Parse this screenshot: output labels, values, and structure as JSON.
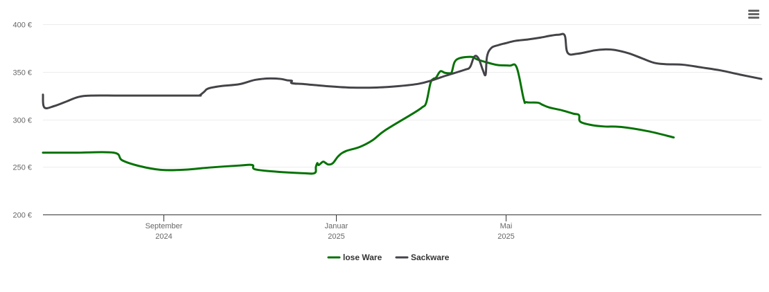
{
  "chart_data": {
    "type": "line",
    "x_unit": "month",
    "ylim": [
      200,
      400
    ],
    "yticks": [
      {
        "value": 200,
        "label": "200 €"
      },
      {
        "value": 250,
        "label": "250 €"
      },
      {
        "value": 300,
        "label": "300 €"
      },
      {
        "value": 350,
        "label": "350 €"
      },
      {
        "value": 400,
        "label": "400 €"
      }
    ],
    "xticks": [
      {
        "x": "2024-09",
        "label": "September",
        "sublabel": "2024"
      },
      {
        "x": "2025-01",
        "label": "Januar",
        "sublabel": "2025"
      },
      {
        "x": "2025-05",
        "label": "Mai",
        "sublabel": "2025"
      }
    ],
    "grid": "horizontal",
    "legend_position": "bottom-center",
    "series": [
      {
        "name": "lose Ware",
        "color": "#047204",
        "points": [
          [
            "2024-06-08",
            265
          ],
          [
            "2024-07-01",
            265
          ],
          [
            "2024-07-28",
            265
          ],
          [
            "2024-08-03",
            257
          ],
          [
            "2024-08-15",
            251
          ],
          [
            "2024-08-30",
            247
          ],
          [
            "2024-09-15",
            247
          ],
          [
            "2024-10-05",
            249.5
          ],
          [
            "2024-10-25",
            251.5
          ],
          [
            "2024-11-03",
            252
          ],
          [
            "2024-11-05",
            247.5
          ],
          [
            "2024-11-20",
            245
          ],
          [
            "2024-12-08",
            243.5
          ],
          [
            "2024-12-17",
            243.5
          ],
          [
            "2024-12-18",
            250
          ],
          [
            "2024-12-19",
            254
          ],
          [
            "2024-12-20",
            252
          ],
          [
            "2024-12-23",
            255.5
          ],
          [
            "2024-12-25",
            254
          ],
          [
            "2024-12-27",
            252.5
          ],
          [
            "2024-12-30",
            254
          ],
          [
            "2025-01-03",
            261.5
          ],
          [
            "2025-01-08",
            266.5
          ],
          [
            "2025-01-18",
            271
          ],
          [
            "2025-01-27",
            278
          ],
          [
            "2025-02-05",
            288.5
          ],
          [
            "2025-02-25",
            306.5
          ],
          [
            "2025-03-03",
            312.5
          ],
          [
            "2025-03-06",
            317.5
          ],
          [
            "2025-03-09",
            338
          ],
          [
            "2025-03-11",
            342.5
          ],
          [
            "2025-03-13",
            344
          ],
          [
            "2025-03-16",
            350.5
          ],
          [
            "2025-03-19",
            349
          ],
          [
            "2025-03-22",
            348.5
          ],
          [
            "2025-03-24",
            349.5
          ],
          [
            "2025-03-26",
            360
          ],
          [
            "2025-03-29",
            364
          ],
          [
            "2025-04-03",
            365.5
          ],
          [
            "2025-04-08",
            365.5
          ],
          [
            "2025-04-11",
            363
          ],
          [
            "2025-04-20",
            359
          ],
          [
            "2025-04-26",
            357
          ],
          [
            "2025-05-04",
            356.5
          ],
          [
            "2025-05-09",
            354.5
          ],
          [
            "2025-05-14",
            321
          ],
          [
            "2025-05-16",
            318
          ],
          [
            "2025-05-24",
            317.5
          ],
          [
            "2025-05-27",
            315.5
          ],
          [
            "2025-06-01",
            312.5
          ],
          [
            "2025-06-10",
            309.5
          ],
          [
            "2025-06-18",
            306
          ],
          [
            "2025-06-22",
            304.5
          ],
          [
            "2025-06-23",
            297.5
          ],
          [
            "2025-07-01",
            294
          ],
          [
            "2025-07-10",
            292.5
          ],
          [
            "2025-07-22",
            292
          ],
          [
            "2025-08-10",
            287.5
          ],
          [
            "2025-08-28",
            281
          ]
        ]
      },
      {
        "name": "Sackware",
        "color": "#434348",
        "points": [
          [
            "2024-06-08",
            326
          ],
          [
            "2024-06-09",
            312.5
          ],
          [
            "2024-06-16",
            314
          ],
          [
            "2024-06-25",
            319
          ],
          [
            "2024-07-03",
            323.5
          ],
          [
            "2024-07-12",
            325
          ],
          [
            "2024-08-01",
            325
          ],
          [
            "2024-08-30",
            325
          ],
          [
            "2024-09-25",
            325
          ],
          [
            "2024-09-27",
            325.5
          ],
          [
            "2024-09-30",
            329
          ],
          [
            "2024-10-03",
            332.5
          ],
          [
            "2024-10-12",
            335
          ],
          [
            "2024-10-25",
            337
          ],
          [
            "2024-11-05",
            341.5
          ],
          [
            "2024-11-15",
            343
          ],
          [
            "2024-11-23",
            342.5
          ],
          [
            "2024-11-28",
            341
          ],
          [
            "2024-12-01",
            340.5
          ],
          [
            "2024-12-01",
            338
          ],
          [
            "2024-12-10",
            337
          ],
          [
            "2024-12-25",
            335
          ],
          [
            "2025-01-10",
            333.5
          ],
          [
            "2025-01-30",
            333.5
          ],
          [
            "2025-02-15",
            335
          ],
          [
            "2025-03-01",
            337.5
          ],
          [
            "2025-03-10",
            341
          ],
          [
            "2025-03-20",
            346
          ],
          [
            "2025-04-02",
            352
          ],
          [
            "2025-04-06",
            355
          ],
          [
            "2025-04-09",
            366
          ],
          [
            "2025-04-12",
            364
          ],
          [
            "2025-04-15",
            352
          ],
          [
            "2025-04-17",
            347
          ],
          [
            "2025-04-18",
            366
          ],
          [
            "2025-04-21",
            375
          ],
          [
            "2025-04-26",
            378
          ],
          [
            "2025-05-01",
            380
          ],
          [
            "2025-05-08",
            382.5
          ],
          [
            "2025-05-17",
            384
          ],
          [
            "2025-05-26",
            386
          ],
          [
            "2025-06-02",
            388
          ],
          [
            "2025-06-08",
            389
          ],
          [
            "2025-06-12",
            388
          ],
          [
            "2025-06-14",
            370
          ],
          [
            "2025-06-21",
            369
          ],
          [
            "2025-07-03",
            372.5
          ],
          [
            "2025-07-10",
            373.5
          ],
          [
            "2025-07-17",
            373
          ],
          [
            "2025-07-27",
            369.5
          ],
          [
            "2025-08-05",
            364.5
          ],
          [
            "2025-08-14",
            359.5
          ],
          [
            "2025-08-22",
            358
          ],
          [
            "2025-09-03",
            357.5
          ],
          [
            "2025-09-17",
            354.5
          ],
          [
            "2025-09-30",
            351.5
          ],
          [
            "2025-10-14",
            347
          ],
          [
            "2025-10-29",
            342.5
          ]
        ]
      }
    ]
  },
  "menu": {
    "icon": "hamburger-menu-icon"
  }
}
